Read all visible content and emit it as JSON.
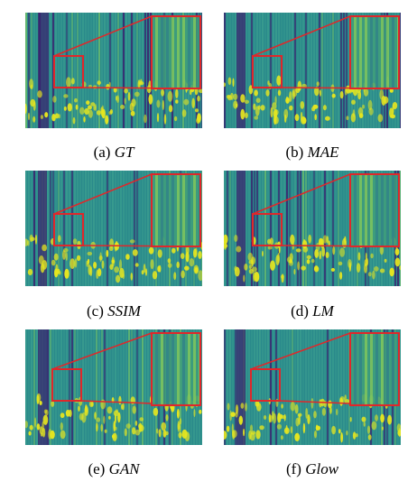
{
  "figure": {
    "panels": [
      {
        "id": "gt",
        "letter": "(a)",
        "method": "GT"
      },
      {
        "id": "mae",
        "letter": "(b)",
        "method": "MAE"
      },
      {
        "id": "ssim",
        "letter": "(c)",
        "method": "SSIM"
      },
      {
        "id": "lm",
        "letter": "(d)",
        "method": "LM"
      },
      {
        "id": "gan",
        "letter": "(e)",
        "method": "GAN"
      },
      {
        "id": "glow",
        "letter": "(f)",
        "method": "Glow"
      }
    ],
    "colors": {
      "zoom_box": "#e0272a",
      "low": "#3b1f6e",
      "mid": "#2a8a8b",
      "high": "#e6e61f"
    }
  }
}
